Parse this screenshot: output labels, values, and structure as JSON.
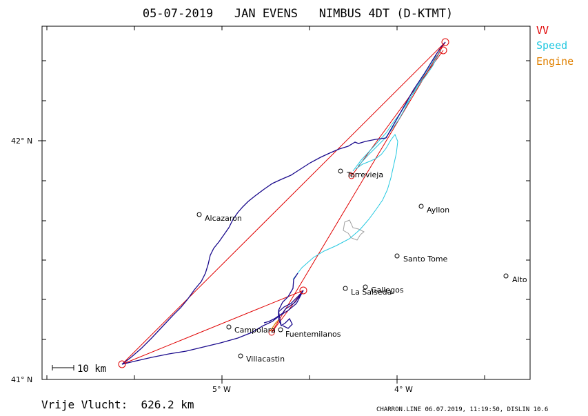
{
  "title": "05-07-2019   JAN EVENS   NIMBUS 4DT (D-KTMT)",
  "legend": [
    {
      "label": "VV",
      "color": "#e00000"
    },
    {
      "label": "Speed",
      "color": "#22c8e0"
    },
    {
      "label": "Engine",
      "color": "#e08000"
    }
  ],
  "axes": {
    "lat_labels": [
      "42° N",
      "41° N"
    ],
    "lon_labels": [
      "5° W",
      "4° W"
    ]
  },
  "towns": [
    {
      "name": "Torrevieja"
    },
    {
      "name": "Alcazaron"
    },
    {
      "name": "Ayllon"
    },
    {
      "name": "Santo Tome"
    },
    {
      "name": "Alto"
    },
    {
      "name": "La Salseda"
    },
    {
      "name": "Gallegos"
    },
    {
      "name": "Campolara"
    },
    {
      "name": "Fuentemilanos"
    },
    {
      "name": "Villacastin"
    }
  ],
  "scale_label": "10 km",
  "distance_text": "Vrije Vlucht:  626.2 km",
  "footer_text": "CHARRON.LINE 06.07.2019, 11:19:50, DISLIN 10.6",
  "colors": {
    "track": "#1a0a8c",
    "task": "#e00000",
    "speed": "#22c8e0",
    "engine": "#e08000",
    "terrain": "#a0a0a0"
  }
}
